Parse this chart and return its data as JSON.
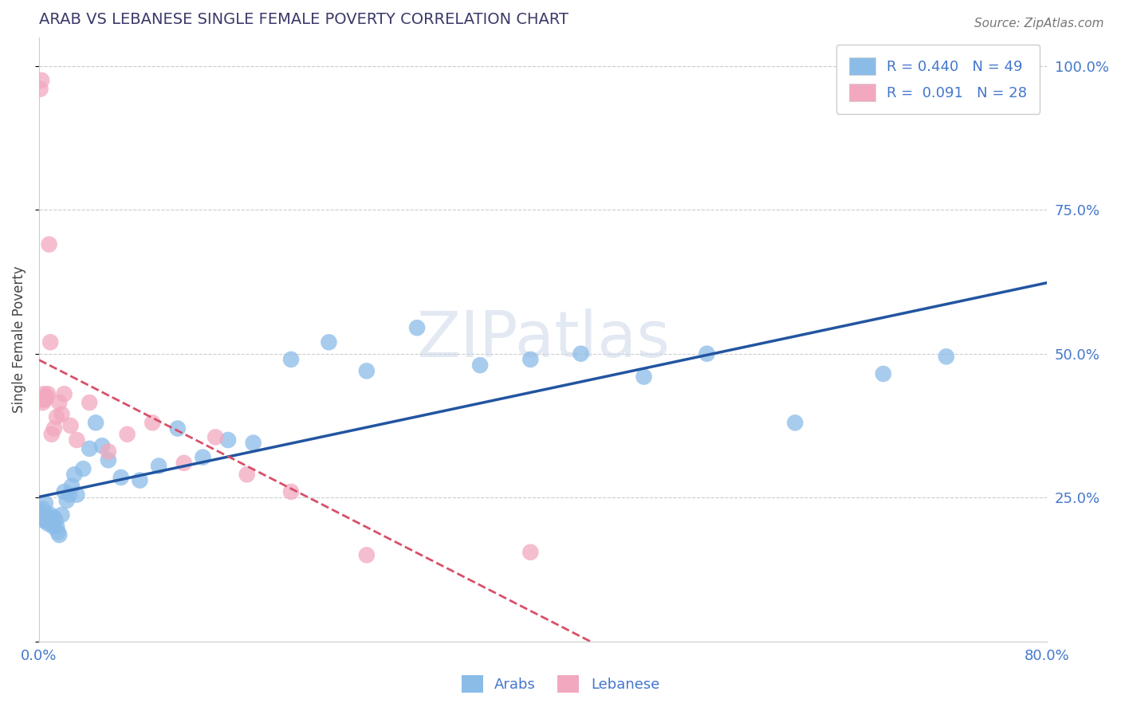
{
  "title": "ARAB VS LEBANESE SINGLE FEMALE POVERTY CORRELATION CHART",
  "source": "Source: ZipAtlas.com",
  "ylabel": "Single Female Poverty",
  "xlim": [
    0.0,
    0.8
  ],
  "ylim": [
    0.0,
    1.05
  ],
  "xticks": [
    0.0,
    0.1,
    0.2,
    0.3,
    0.4,
    0.5,
    0.6,
    0.7,
    0.8
  ],
  "xticklabels": [
    "0.0%",
    "",
    "",
    "",
    "",
    "",
    "",
    "",
    "80.0%"
  ],
  "yticks_right": [
    0.0,
    0.25,
    0.5,
    0.75,
    1.0
  ],
  "yticklabels_right": [
    "",
    "25.0%",
    "50.0%",
    "75.0%",
    "100.0%"
  ],
  "arab_R": 0.44,
  "arab_N": 49,
  "leb_R": 0.091,
  "leb_N": 28,
  "arab_color": "#8bbce8",
  "leb_color": "#f2a8be",
  "arab_color_line": "#2255a0",
  "leb_color_line": "#d8506a",
  "watermark": "ZIPatlas",
  "title_color": "#3a3a6a",
  "axis_label_color": "#4477cc",
  "grid_color": "#cccccc",
  "arab_x": [
    0.001,
    0.002,
    0.003,
    0.003,
    0.004,
    0.005,
    0.005,
    0.006,
    0.007,
    0.008,
    0.009,
    0.01,
    0.011,
    0.012,
    0.013,
    0.014,
    0.015,
    0.016,
    0.018,
    0.02,
    0.022,
    0.024,
    0.026,
    0.028,
    0.03,
    0.035,
    0.04,
    0.045,
    0.05,
    0.055,
    0.065,
    0.08,
    0.095,
    0.11,
    0.13,
    0.15,
    0.17,
    0.2,
    0.23,
    0.26,
    0.3,
    0.35,
    0.39,
    0.43,
    0.48,
    0.53,
    0.6,
    0.67,
    0.72
  ],
  "arab_y": [
    0.215,
    0.225,
    0.215,
    0.23,
    0.21,
    0.22,
    0.24,
    0.21,
    0.205,
    0.215,
    0.22,
    0.205,
    0.2,
    0.215,
    0.21,
    0.2,
    0.19,
    0.185,
    0.22,
    0.26,
    0.245,
    0.255,
    0.27,
    0.29,
    0.255,
    0.3,
    0.335,
    0.38,
    0.34,
    0.315,
    0.285,
    0.28,
    0.305,
    0.37,
    0.32,
    0.35,
    0.345,
    0.49,
    0.52,
    0.47,
    0.545,
    0.48,
    0.49,
    0.5,
    0.46,
    0.5,
    0.38,
    0.465,
    0.495
  ],
  "leb_x": [
    0.001,
    0.002,
    0.003,
    0.003,
    0.004,
    0.005,
    0.006,
    0.007,
    0.008,
    0.009,
    0.01,
    0.012,
    0.014,
    0.016,
    0.018,
    0.02,
    0.025,
    0.03,
    0.04,
    0.055,
    0.07,
    0.09,
    0.115,
    0.14,
    0.165,
    0.2,
    0.26,
    0.39
  ],
  "leb_y": [
    0.96,
    0.975,
    0.42,
    0.415,
    0.43,
    0.42,
    0.425,
    0.43,
    0.69,
    0.52,
    0.36,
    0.37,
    0.39,
    0.415,
    0.395,
    0.43,
    0.375,
    0.35,
    0.415,
    0.33,
    0.36,
    0.38,
    0.31,
    0.355,
    0.29,
    0.26,
    0.15,
    0.155
  ]
}
